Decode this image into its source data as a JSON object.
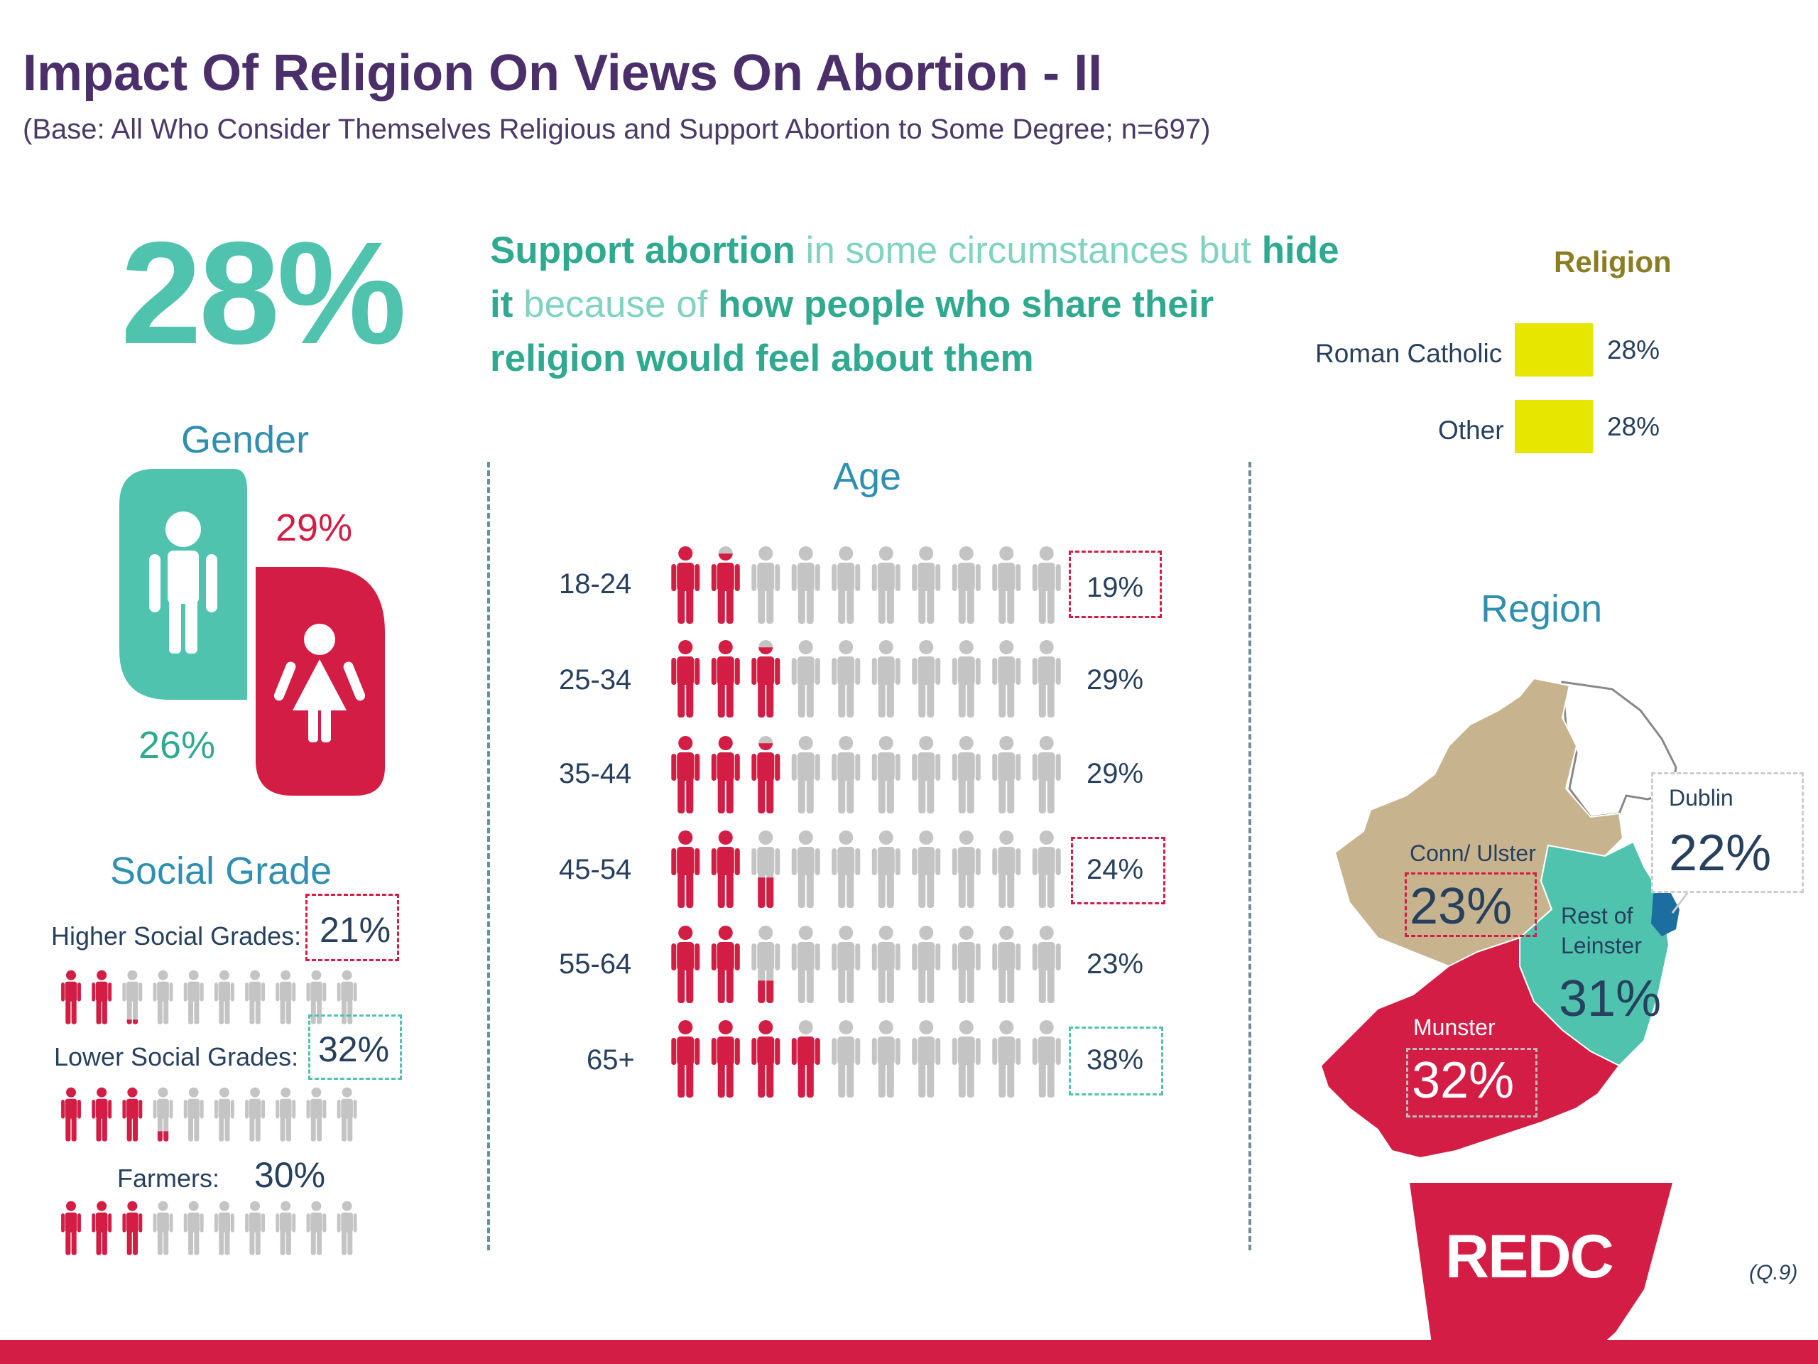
{
  "header": {
    "title": "Impact Of Religion On Views On Abortion - II",
    "subtitle": "(Base: All Who Consider Themselves Religious and Support Abortion to Some Degree; n=697)"
  },
  "headline": {
    "value": "28%",
    "parts": [
      {
        "text": "Support abortion",
        "bold": true
      },
      {
        "text": " in some circumstances but ",
        "bold": false
      },
      {
        "text": "hide it",
        "bold": true
      },
      {
        "text": " because of ",
        "bold": false
      },
      {
        "text": "how people who share their religion would feel about them",
        "bold": true
      }
    ]
  },
  "gender": {
    "title": "Gender",
    "male": "26%",
    "female": "29%"
  },
  "social_grade": {
    "title": "Social Grade",
    "rows": [
      {
        "label": "Higher Social Grades:",
        "value": "21%",
        "pct": 21,
        "highlight": "red"
      },
      {
        "label": "Lower Social Grades:",
        "value": "32%",
        "pct": 32,
        "highlight": "teal"
      },
      {
        "label": "Farmers:",
        "value": "30%",
        "pct": 30,
        "highlight": "none"
      }
    ]
  },
  "age": {
    "title": "Age",
    "rows": [
      {
        "label": "18-24",
        "value": "19%",
        "pct": 19,
        "highlight": "red"
      },
      {
        "label": "25-34",
        "value": "29%",
        "pct": 29,
        "highlight": "none"
      },
      {
        "label": "35-44",
        "value": "29%",
        "pct": 29,
        "highlight": "none"
      },
      {
        "label": "45-54",
        "value": "24%",
        "pct": 24,
        "highlight": "red"
      },
      {
        "label": "55-64",
        "value": "23%",
        "pct": 23,
        "highlight": "none"
      },
      {
        "label": "65+",
        "value": "38%",
        "pct": 38,
        "highlight": "teal"
      }
    ]
  },
  "religion": {
    "title": "Religion",
    "rows": [
      {
        "label": "Roman Catholic",
        "value": "28%"
      },
      {
        "label": "Other",
        "value": "28%"
      }
    ]
  },
  "region": {
    "title": "Region",
    "areas": [
      {
        "label": "Dublin",
        "value": "22%"
      },
      {
        "label": "Conn/ Ulster",
        "value": "23%"
      },
      {
        "label": "Rest of Leinster",
        "value": "31%"
      },
      {
        "label": "Munster",
        "value": "32%"
      }
    ]
  },
  "footer": {
    "logo": "REDC",
    "ref": "(Q.9)"
  },
  "colors": {
    "teal": "#4fc3ad",
    "red": "#d31d44",
    "grey": "#c4c4c4",
    "purple": "#4b2f6a",
    "gold": "#c7b48f",
    "yellow": "#e6e600"
  },
  "chart_data": [
    {
      "type": "bar",
      "title": "Gender",
      "categories": [
        "Male",
        "Female"
      ],
      "values": [
        26,
        29
      ]
    },
    {
      "type": "bar",
      "title": "Age",
      "categories": [
        "18-24",
        "25-34",
        "35-44",
        "45-54",
        "55-64",
        "65+"
      ],
      "values": [
        19,
        29,
        29,
        24,
        23,
        38
      ]
    },
    {
      "type": "bar",
      "title": "Social Grade",
      "categories": [
        "Higher Social Grades",
        "Lower Social Grades",
        "Farmers"
      ],
      "values": [
        21,
        32,
        30
      ]
    },
    {
      "type": "bar",
      "title": "Religion",
      "categories": [
        "Roman Catholic",
        "Other"
      ],
      "values": [
        28,
        28
      ]
    },
    {
      "type": "bar",
      "title": "Region",
      "categories": [
        "Dublin",
        "Conn/ Ulster",
        "Rest of Leinster",
        "Munster"
      ],
      "values": [
        22,
        23,
        31,
        32
      ]
    }
  ]
}
